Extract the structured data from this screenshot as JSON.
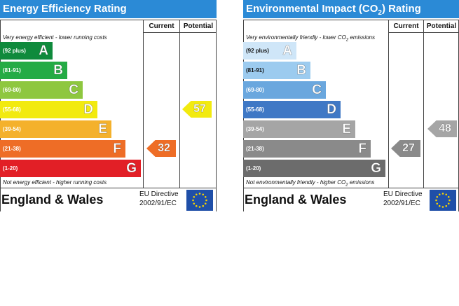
{
  "chart_data": [
    {
      "type": "bar",
      "title": "Energy Efficiency Rating",
      "title_color": "#2b8ad6",
      "columns": [
        "Current",
        "Potential"
      ],
      "top_note": "Very energy efficient - lower running costs",
      "bottom_note": "Not energy efficient - higher running costs",
      "bands": [
        {
          "letter": "A",
          "range": "(92 plus)",
          "color": "#0f8a3c"
        },
        {
          "letter": "B",
          "range": "(81-91)",
          "color": "#24ab45"
        },
        {
          "letter": "C",
          "range": "(69-80)",
          "color": "#8ec73f"
        },
        {
          "letter": "D",
          "range": "(55-68)",
          "color": "#f2ea0f"
        },
        {
          "letter": "E",
          "range": "(39-54)",
          "color": "#f4b12c"
        },
        {
          "letter": "F",
          "range": "(21-38)",
          "color": "#ee6d26"
        },
        {
          "letter": "G",
          "range": "(1-20)",
          "color": "#e21f26"
        }
      ],
      "current": {
        "value": 32,
        "band": "F",
        "color": "#ee6d26"
      },
      "potential": {
        "value": 57,
        "band": "D",
        "color": "#f2ea0f"
      },
      "footer": {
        "country": "England & Wales",
        "directive_line1": "EU Directive",
        "directive_line2": "2002/91/EC"
      }
    },
    {
      "type": "bar",
      "title_prefix": "Environmental Impact (CO",
      "title_sub": "2",
      "title_suffix": ") Rating",
      "title_color": "#2b8ad6",
      "columns": [
        "Current",
        "Potential"
      ],
      "top_note_prefix": "Very environmentally friendly - lower CO",
      "top_note_sub": "2",
      "top_note_suffix": " emissions",
      "bottom_note_prefix": "Not environmentally friendly - higher CO",
      "bottom_note_sub": "2",
      "bottom_note_suffix": " emissions",
      "bands": [
        {
          "letter": "A",
          "range": "(92 plus)",
          "color": "#cfe6f8"
        },
        {
          "letter": "B",
          "range": "(81-91)",
          "color": "#9ccbef"
        },
        {
          "letter": "C",
          "range": "(69-80)",
          "color": "#6aa7de"
        },
        {
          "letter": "D",
          "range": "(55-68)",
          "color": "#3f78c5"
        },
        {
          "letter": "E",
          "range": "(39-54)",
          "color": "#a5a5a5"
        },
        {
          "letter": "F",
          "range": "(21-38)",
          "color": "#8a8a8a"
        },
        {
          "letter": "G",
          "range": "(1-20)",
          "color": "#6c6c6c"
        }
      ],
      "current": {
        "value": 27,
        "band": "F",
        "color": "#8a8a8a"
      },
      "potential": {
        "value": 48,
        "band": "E",
        "color": "#a5a5a5"
      },
      "footer": {
        "country": "England & Wales",
        "directive_line1": "EU Directive",
        "directive_line2": "2002/91/EC"
      }
    }
  ],
  "icons": {
    "flag": "eu-flag-icon"
  }
}
